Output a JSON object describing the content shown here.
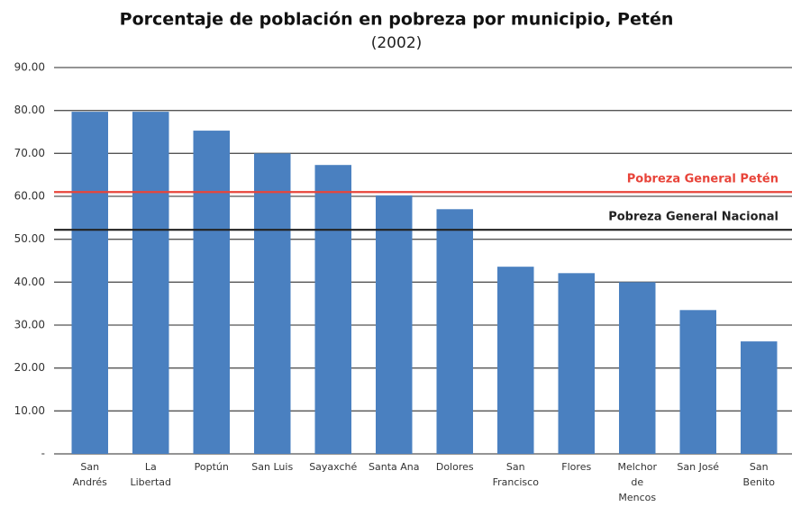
{
  "chart_data": {
    "type": "bar",
    "title": "Porcentaje de población en pobreza por municipio, Petén",
    "subtitle": "(2002)",
    "categories": [
      "San\nAndrés",
      "La\nLibertad",
      "Poptún",
      "San Luis",
      "Sayaxché",
      "Santa Ana",
      "Dolores",
      "San\nFrancisco",
      "Flores",
      "Melchor\nde\nMencos",
      "San José",
      "San\nBenito"
    ],
    "values": [
      79.7,
      79.7,
      75.3,
      70.0,
      67.3,
      60.2,
      57.0,
      43.6,
      42.1,
      40.0,
      33.5,
      26.2
    ],
    "color": "#4a80c0",
    "ylim": [
      0,
      90
    ],
    "yticks": [
      {
        "value": 0,
        "label": "-"
      },
      {
        "value": 10,
        "label": "10.00"
      },
      {
        "value": 20,
        "label": "20.00"
      },
      {
        "value": 30,
        "label": "30.00"
      },
      {
        "value": 40,
        "label": "40.00"
      },
      {
        "value": 50,
        "label": "50.00"
      },
      {
        "value": 60,
        "label": "60.00"
      },
      {
        "value": 70,
        "label": "70.00"
      },
      {
        "value": 80,
        "label": "80.00"
      },
      {
        "value": 90,
        "label": "90.00"
      }
    ],
    "grid": true,
    "reference_lines": [
      {
        "name": "Pobreza General Petén",
        "value": 61.0,
        "color": "#e8443a"
      },
      {
        "name": "Pobreza General Nacional",
        "value": 52.2,
        "color": "#222222"
      }
    ]
  }
}
